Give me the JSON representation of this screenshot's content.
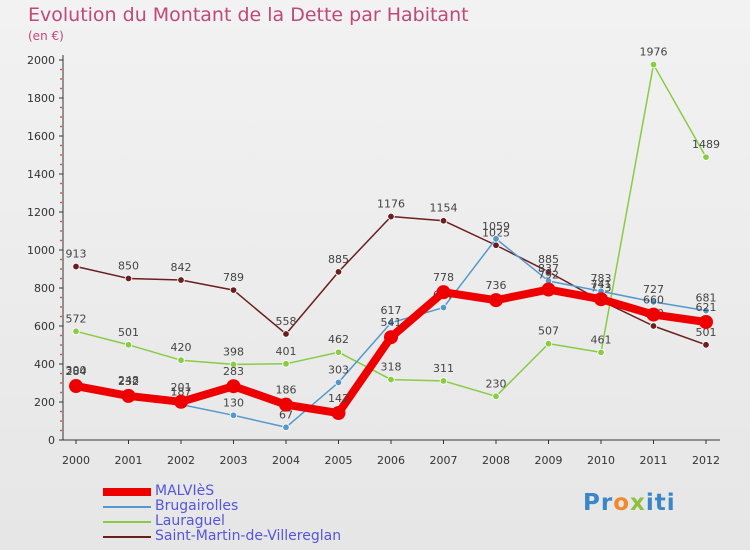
{
  "chart_data": {
    "type": "line",
    "title": "Evolution du Montant de la Dette par Habitant",
    "subtitle": "(en €)",
    "x": [
      "2000",
      "2001",
      "2002",
      "2003",
      "2004",
      "2005",
      "2006",
      "2007",
      "2008",
      "2009",
      "2010",
      "2011",
      "2012"
    ],
    "ylim": [
      0,
      2000
    ],
    "yticks": [
      0,
      200,
      400,
      600,
      800,
      1000,
      1200,
      1400,
      1600,
      1800,
      2000
    ],
    "grid": false,
    "legend_position": "bottom-left",
    "series": [
      {
        "name": "Saint-Martin-de-Villereglan",
        "color": "#6b1e1e",
        "values": [
          913,
          850,
          842,
          789,
          558,
          885,
          1176,
          1154,
          1025,
          885,
          733,
          600,
          501
        ]
      },
      {
        "name": "Lauraguel",
        "color": "#88cc44",
        "values": [
          572,
          501,
          420,
          398,
          401,
          462,
          318,
          311,
          230,
          507,
          461,
          1976,
          1489
        ]
      },
      {
        "name": "Brugairolles",
        "color": "#5599cc",
        "values": [
          300,
          248,
          187,
          130,
          67,
          303,
          617,
          697,
          1059,
          837,
          783,
          727,
          681
        ]
      },
      {
        "name": "MALVIèS",
        "color": "#ee0000",
        "values": [
          284,
          232,
          201,
          283,
          186,
          142,
          541,
          778,
          736,
          792,
          741,
          660,
          621
        ]
      }
    ]
  },
  "legend": [
    {
      "label": "MALVIèS",
      "color": "#ee0000",
      "weight": 8
    },
    {
      "label": "Brugairolles",
      "color": "#5599cc",
      "weight": 2
    },
    {
      "label": "Lauraguel",
      "color": "#88cc44",
      "weight": 2
    },
    {
      "label": "Saint-Martin-de-Villereglan",
      "color": "#6b1e1e",
      "weight": 2
    }
  ],
  "brand": {
    "p": "Pr",
    "o": "o",
    "x": "x",
    "rest": "iti"
  }
}
